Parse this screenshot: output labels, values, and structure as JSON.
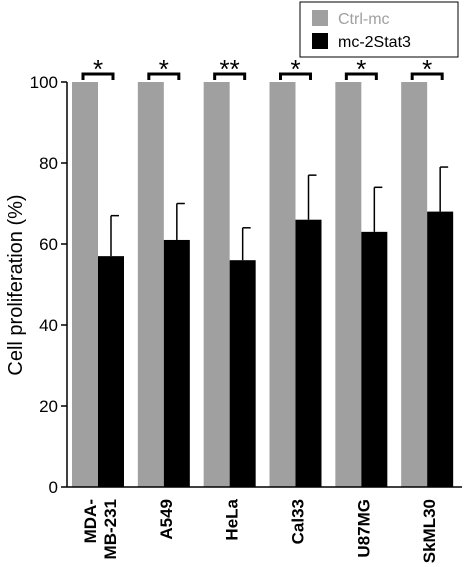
{
  "chart_data": {
    "type": "bar",
    "ylabel": "Cell proliferation (%)",
    "ylim": [
      0,
      100
    ],
    "yticks": [
      0,
      20,
      40,
      60,
      80,
      100
    ],
    "grid": false,
    "legend_position": "top-right",
    "categories": [
      "MDA-MB-231",
      "A549",
      "HeLa",
      "Cal33",
      "U87MG",
      "SkML30"
    ],
    "category_lines": [
      [
        "MDA-",
        "MB-231"
      ],
      [
        "A549"
      ],
      [
        "HeLa"
      ],
      [
        "Cal33"
      ],
      [
        "U87MG"
      ],
      [
        "SkML30"
      ]
    ],
    "series": [
      {
        "name": "Ctrl-mc",
        "color": "#a0a0a0",
        "legend_text_color": "#a0a0a0",
        "values": [
          100,
          100,
          100,
          100,
          100,
          100
        ]
      },
      {
        "name": "mc-2Stat3",
        "color": "#000000",
        "legend_text_color": "#000000",
        "values": [
          57,
          61,
          56,
          66,
          63,
          68
        ],
        "error": [
          10,
          9,
          8,
          11,
          11,
          11
        ]
      }
    ],
    "significance": [
      "*",
      "*",
      "**",
      "*",
      "*",
      "*"
    ]
  }
}
